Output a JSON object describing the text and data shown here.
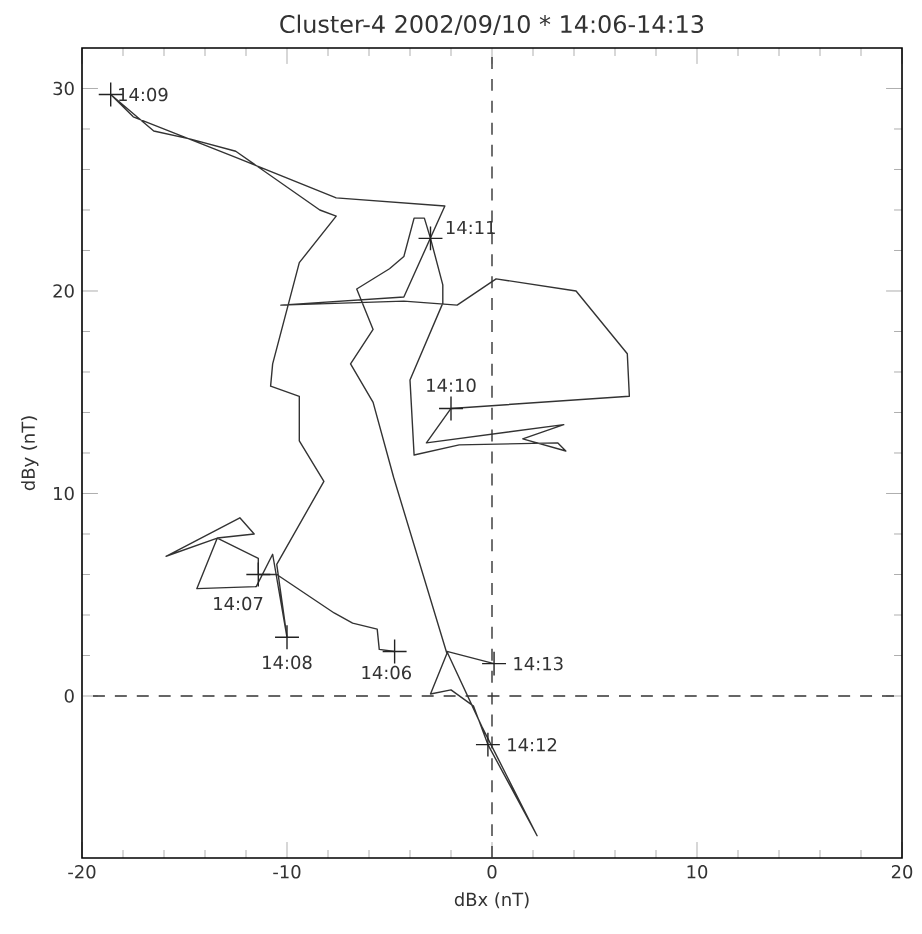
{
  "chart_data": {
    "type": "line",
    "title": "Cluster-4 2002/09/10 * 14:06-14:13",
    "xlabel": "dBx (nT)",
    "ylabel": "dBy (nT)",
    "xlim": [
      -20,
      20
    ],
    "ylim": [
      -8,
      32
    ],
    "xticks": [
      -20,
      -10,
      0,
      10,
      20
    ],
    "yticks": [
      0,
      10,
      20,
      30
    ],
    "grid": false,
    "series": [
      {
        "color": "#333333",
        "marker": "none",
        "line_style": "solid",
        "x": [
          -4.75,
          -5.5,
          -5.6,
          -6.8,
          -7.7,
          -10.5,
          -11.4,
          -11.4,
          -13.4,
          -15.9,
          -12.3,
          -11.6,
          -13.4,
          -14.4,
          -11.5,
          -10.7,
          -10.0,
          -10.5,
          -8.2,
          -9.4,
          -9.4,
          -10.8,
          -10.7,
          -9.4,
          -7.6,
          -8.4,
          -12.5,
          -14.7,
          -16.5,
          -18.6,
          -17.5,
          -12.5,
          -7.6,
          -2.3,
          -4.3,
          -10.3,
          -4.3,
          -1.7,
          0.2,
          4.1,
          6.6,
          6.7,
          -2.0,
          -3.2,
          3.5,
          1.5,
          3.6,
          3.2,
          -1.6,
          -3.8,
          -4.0,
          -2.4,
          -2.4,
          -3.0,
          -3.3,
          -3.8,
          -4.3,
          -5.0,
          -6.6,
          -5.8,
          -6.9,
          -5.8,
          -4.8,
          -2.2,
          -3.0,
          -2.0,
          -0.9,
          -0.2,
          2.2,
          0.7,
          -0.5,
          -2.2,
          0.1
        ],
        "values": [
          2.2,
          2.3,
          3.3,
          3.6,
          4.1,
          6.0,
          6.0,
          6.8,
          7.8,
          6.9,
          8.8,
          8.0,
          7.8,
          5.3,
          5.4,
          7.0,
          2.9,
          6.5,
          10.6,
          12.6,
          14.8,
          15.3,
          16.4,
          21.4,
          23.7,
          24.0,
          26.9,
          27.5,
          27.9,
          29.7,
          28.6,
          26.6,
          24.6,
          24.2,
          19.7,
          19.3,
          19.5,
          19.3,
          20.6,
          20.0,
          16.9,
          14.8,
          14.2,
          12.5,
          13.4,
          12.7,
          12.1,
          12.5,
          12.4,
          11.9,
          15.6,
          19.4,
          20.3,
          22.6,
          23.6,
          23.6,
          21.7,
          21.1,
          20.1,
          18.1,
          16.4,
          14.5,
          10.8,
          2.1,
          0.1,
          0.3,
          -0.5,
          -2.4,
          -6.9,
          -3.9,
          -1.5,
          2.2,
          1.6
        ]
      },
      {
        "type": "scatter",
        "color": "#222222",
        "marker": "cross",
        "x": [
          -4.75,
          -11.4,
          -10.0,
          -18.6,
          -2.0,
          -3.0,
          -0.2,
          0.1
        ],
        "values": [
          2.2,
          6.0,
          2.9,
          29.7,
          14.2,
          22.6,
          -2.4,
          1.6
        ]
      }
    ],
    "ref_lines": [
      {
        "axis": "x",
        "value": 0,
        "line_style": "dashed",
        "color": "#333333"
      },
      {
        "axis": "y",
        "value": 0,
        "line_style": "dashed",
        "color": "#333333"
      }
    ],
    "annotations": [
      {
        "text": "14:06",
        "x": -4.75,
        "y": 2.2
      },
      {
        "text": "14:07",
        "x": -11.4,
        "y": 6.0
      },
      {
        "text": "14:08",
        "x": -10.0,
        "y": 2.9
      },
      {
        "text": "14:09",
        "x": -18.6,
        "y": 29.7
      },
      {
        "text": "14:10",
        "x": -2.0,
        "y": 14.2
      },
      {
        "text": "14:11",
        "x": -3.0,
        "y": 22.6
      },
      {
        "text": "14:12",
        "x": -0.2,
        "y": -2.4
      },
      {
        "text": "14:13",
        "x": 0.1,
        "y": 1.6
      }
    ]
  }
}
